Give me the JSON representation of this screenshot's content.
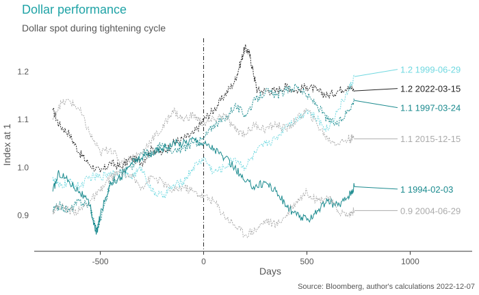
{
  "chart_data": {
    "type": "line",
    "title": "Dollar performance",
    "subtitle": "Dollar spot during tightening cycle",
    "xlabel": "Days",
    "ylabel": "Index at 1",
    "source": "Source: Bloomberg, author's calculations 2022-12-07",
    "xlim": [
      -820,
      1300
    ],
    "ylim": [
      0.825,
      1.27
    ],
    "xticks": [
      -500,
      0,
      500,
      1000
    ],
    "yticks": [
      0.9,
      1.0,
      1.1,
      1.2
    ],
    "xtick_labels": [
      "-500",
      "0",
      "500",
      "1000"
    ],
    "ytick_labels": [
      "0.9",
      "1.0",
      "1.1",
      "1.2"
    ],
    "vline_x": 0,
    "series": [
      {
        "name": "2022-03-15",
        "label": "1.2 2022-03-15",
        "color": "#222222",
        "dash": "2,1.5",
        "end_value": 1.2,
        "points": [
          [
            -730,
            1.12
          ],
          [
            -700,
            1.09
          ],
          [
            -650,
            1.07
          ],
          [
            -600,
            1.03
          ],
          [
            -560,
            1.01
          ],
          [
            -500,
            0.99
          ],
          [
            -450,
            1.01
          ],
          [
            -400,
            1.0
          ],
          [
            -350,
            1.02
          ],
          [
            -300,
            1.01
          ],
          [
            -250,
            1.04
          ],
          [
            -200,
            1.03
          ],
          [
            -150,
            1.05
          ],
          [
            -100,
            1.06
          ],
          [
            -50,
            1.07
          ],
          [
            0,
            1.1
          ],
          [
            50,
            1.12
          ],
          [
            100,
            1.15
          ],
          [
            150,
            1.18
          ],
          [
            180,
            1.22
          ],
          [
            200,
            1.25
          ],
          [
            220,
            1.24
          ],
          [
            240,
            1.2
          ],
          [
            260,
            1.16
          ],
          [
            300,
            1.16
          ],
          [
            350,
            1.16
          ],
          [
            400,
            1.17
          ],
          [
            450,
            1.16
          ],
          [
            500,
            1.17
          ],
          [
            550,
            1.16
          ],
          [
            600,
            1.15
          ],
          [
            650,
            1.16
          ],
          [
            700,
            1.17
          ],
          [
            730,
            1.16
          ]
        ],
        "label_value": 1.165
      },
      {
        "name": "1999-06-29",
        "label": "1.2 1999-06-29",
        "color": "#6fd8e0",
        "dash": "2,1.5",
        "end_value": 1.2,
        "points": [
          [
            -730,
            0.98
          ],
          [
            -700,
            0.96
          ],
          [
            -650,
            0.97
          ],
          [
            -600,
            0.96
          ],
          [
            -550,
            0.98
          ],
          [
            -500,
            0.98
          ],
          [
            -450,
            0.99
          ],
          [
            -400,
            0.99
          ],
          [
            -350,
            0.98
          ],
          [
            -300,
            1.0
          ],
          [
            -250,
            0.95
          ],
          [
            -200,
            0.94
          ],
          [
            -150,
            0.96
          ],
          [
            -100,
            0.97
          ],
          [
            -50,
            1.0
          ],
          [
            0,
            1.02
          ],
          [
            50,
            0.99
          ],
          [
            100,
            1.0
          ],
          [
            150,
            1.02
          ],
          [
            200,
            1.0
          ],
          [
            250,
            1.03
          ],
          [
            300,
            1.05
          ],
          [
            350,
            1.06
          ],
          [
            400,
            1.09
          ],
          [
            450,
            1.1
          ],
          [
            500,
            1.12
          ],
          [
            550,
            1.1
          ],
          [
            600,
            1.08
          ],
          [
            650,
            1.12
          ],
          [
            700,
            1.16
          ],
          [
            730,
            1.19
          ]
        ],
        "label_value": 1.205
      },
      {
        "name": "1997-03-24",
        "label": "1.1 1997-03-24",
        "color": "#1a8a8e",
        "dash": "2,1.5",
        "end_value": 1.1,
        "points": [
          [
            -730,
            0.91
          ],
          [
            -700,
            0.92
          ],
          [
            -650,
            0.91
          ],
          [
            -600,
            0.93
          ],
          [
            -550,
            0.92
          ],
          [
            -520,
            0.87
          ],
          [
            -500,
            0.89
          ],
          [
            -450,
            0.97
          ],
          [
            -400,
            0.99
          ],
          [
            -350,
            1.0
          ],
          [
            -300,
            1.03
          ],
          [
            -250,
            1.03
          ],
          [
            -200,
            1.05
          ],
          [
            -150,
            1.03
          ],
          [
            -100,
            1.04
          ],
          [
            -50,
            1.05
          ],
          [
            0,
            1.06
          ],
          [
            50,
            1.09
          ],
          [
            100,
            1.1
          ],
          [
            150,
            1.13
          ],
          [
            200,
            1.11
          ],
          [
            250,
            1.14
          ],
          [
            300,
            1.16
          ],
          [
            350,
            1.15
          ],
          [
            400,
            1.16
          ],
          [
            450,
            1.17
          ],
          [
            500,
            1.15
          ],
          [
            550,
            1.13
          ],
          [
            600,
            1.1
          ],
          [
            650,
            1.09
          ],
          [
            700,
            1.12
          ],
          [
            730,
            1.14
          ]
        ],
        "label_value": 1.125
      },
      {
        "name": "2015-12-15",
        "label": "1.1 2015-12-15",
        "color": "#aaaaaa",
        "dash": "2,1.5",
        "end_value": 1.1,
        "points": [
          [
            -730,
            1.1
          ],
          [
            -700,
            1.13
          ],
          [
            -650,
            1.14
          ],
          [
            -600,
            1.12
          ],
          [
            -550,
            1.07
          ],
          [
            -500,
            1.03
          ],
          [
            -450,
            1.04
          ],
          [
            -400,
            1.01
          ],
          [
            -350,
            1.02
          ],
          [
            -300,
            1.03
          ],
          [
            -250,
            1.06
          ],
          [
            -200,
            1.08
          ],
          [
            -150,
            1.12
          ],
          [
            -100,
            1.1
          ],
          [
            -50,
            1.11
          ],
          [
            0,
            1.09
          ],
          [
            50,
            1.1
          ],
          [
            100,
            1.11
          ],
          [
            150,
            1.08
          ],
          [
            200,
            1.07
          ],
          [
            250,
            1.09
          ],
          [
            300,
            1.08
          ],
          [
            350,
            1.09
          ],
          [
            400,
            1.08
          ],
          [
            450,
            1.1
          ],
          [
            500,
            1.12
          ],
          [
            550,
            1.09
          ],
          [
            600,
            1.06
          ],
          [
            650,
            1.05
          ],
          [
            700,
            1.06
          ],
          [
            730,
            1.06
          ]
        ],
        "label_value": 1.06
      },
      {
        "name": "1994-02-03",
        "label": "1 1994-02-03",
        "color": "#1a8a8e",
        "dash": "",
        "end_value": 1.0,
        "points": [
          [
            -730,
            0.95
          ],
          [
            -700,
            0.99
          ],
          [
            -650,
            0.97
          ],
          [
            -600,
            0.95
          ],
          [
            -550,
            0.92
          ],
          [
            -520,
            0.86
          ],
          [
            -500,
            0.9
          ],
          [
            -450,
            0.97
          ],
          [
            -400,
            0.98
          ],
          [
            -350,
            1.01
          ],
          [
            -300,
            1.02
          ],
          [
            -250,
            1.03
          ],
          [
            -200,
            1.04
          ],
          [
            -150,
            1.05
          ],
          [
            -100,
            1.05
          ],
          [
            -50,
            1.06
          ],
          [
            0,
            1.05
          ],
          [
            50,
            1.04
          ],
          [
            100,
            1.02
          ],
          [
            150,
            1.0
          ],
          [
            200,
            0.97
          ],
          [
            250,
            0.96
          ],
          [
            300,
            0.97
          ],
          [
            350,
            0.95
          ],
          [
            400,
            0.92
          ],
          [
            450,
            0.9
          ],
          [
            500,
            0.89
          ],
          [
            550,
            0.91
          ],
          [
            600,
            0.93
          ],
          [
            650,
            0.92
          ],
          [
            700,
            0.94
          ],
          [
            730,
            0.96
          ]
        ],
        "label_value": 0.955
      },
      {
        "name": "2004-06-29",
        "label": "0.9 2004-06-29",
        "color": "#aaaaaa",
        "dash": "2,1.5",
        "end_value": 0.9,
        "points": [
          [
            -730,
            0.91
          ],
          [
            -700,
            0.92
          ],
          [
            -650,
            0.91
          ],
          [
            -600,
            0.91
          ],
          [
            -550,
            0.93
          ],
          [
            -500,
            0.95
          ],
          [
            -450,
            0.98
          ],
          [
            -400,
            0.99
          ],
          [
            -350,
            0.98
          ],
          [
            -300,
            0.96
          ],
          [
            -250,
            0.98
          ],
          [
            -200,
            0.97
          ],
          [
            -150,
            0.95
          ],
          [
            -100,
            0.96
          ],
          [
            -50,
            0.95
          ],
          [
            0,
            0.94
          ],
          [
            50,
            0.93
          ],
          [
            100,
            0.9
          ],
          [
            150,
            0.88
          ],
          [
            200,
            0.86
          ],
          [
            250,
            0.87
          ],
          [
            300,
            0.89
          ],
          [
            350,
            0.88
          ],
          [
            400,
            0.9
          ],
          [
            450,
            0.93
          ],
          [
            500,
            0.95
          ],
          [
            550,
            0.93
          ],
          [
            600,
            0.94
          ],
          [
            650,
            0.91
          ],
          [
            700,
            0.9
          ],
          [
            730,
            0.91
          ]
        ],
        "label_value": 0.91
      }
    ]
  }
}
